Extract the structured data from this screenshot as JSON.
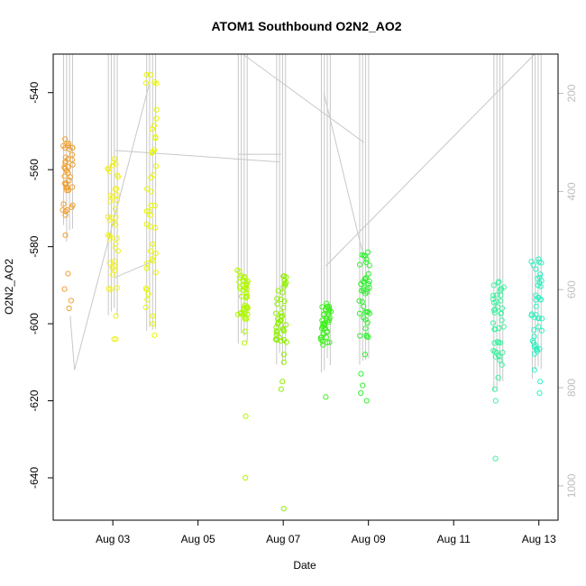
{
  "chart_data": {
    "type": "scatter",
    "title": "ATOM1 Southbound O2N2_AO2",
    "xlabel": "Date",
    "ylabel": "O2N2_AO2",
    "x_ticks": [
      "Aug 03",
      "Aug 05",
      "Aug 07",
      "Aug 09",
      "Aug 11",
      "Aug 13"
    ],
    "x_tick_days": [
      3,
      5,
      7,
      9,
      11,
      13
    ],
    "xlim_days": [
      1.6,
      13.45
    ],
    "ylim": [
      -651,
      -530
    ],
    "y_ticks": [
      -540,
      -560,
      -580,
      -600,
      -620,
      -640
    ],
    "secondary_axis": {
      "ticks": [
        200,
        400,
        600,
        800,
        1000
      ],
      "ylim": [
        1070,
        120
      ],
      "color": "#bebebe",
      "orientation": "inverted"
    },
    "grid": false,
    "marker": "open-circle",
    "clusters": [
      {
        "x": "Aug 02",
        "day": 1.95,
        "color": "#f0a030",
        "ymin": -572,
        "ymax": -552,
        "extra": [
          -577,
          -587,
          -591,
          -594,
          -596
        ]
      },
      {
        "x": "Aug 03",
        "day": 3.0,
        "color": "#f0f028",
        "ymin": -592,
        "ymax": -557,
        "extra": [
          -598,
          -604,
          -604
        ]
      },
      {
        "x": "Aug 04",
        "day": 3.9,
        "color": "#e8f800",
        "ymin": -596,
        "ymax": -535,
        "extra": [
          -598,
          -600,
          -603
        ]
      },
      {
        "x": "Aug 06",
        "day": 6.05,
        "color": "#b0f800",
        "ymin": -599,
        "ymax": -585,
        "extra": [
          -602,
          -605,
          -624,
          -640
        ]
      },
      {
        "x": "Aug 07",
        "day": 6.95,
        "color": "#90f000",
        "ymin": -605,
        "ymax": -587,
        "extra": [
          -608,
          -610,
          -615,
          -617,
          -648
        ]
      },
      {
        "x": "Aug 08",
        "day": 8.0,
        "color": "#40f020",
        "ymin": -606,
        "ymax": -594,
        "extra": [
          -619
        ]
      },
      {
        "x": "Aug 09",
        "day": 8.9,
        "color": "#30f030",
        "ymin": -604,
        "ymax": -581,
        "extra": [
          -608,
          -613,
          -616,
          -618,
          -620
        ]
      },
      {
        "x": "Aug 12",
        "day": 12.05,
        "color": "#40f0a0",
        "ymin": -611,
        "ymax": -589,
        "extra": [
          -614,
          -617,
          -620,
          -635
        ]
      },
      {
        "x": "Aug 13",
        "day": 12.95,
        "color": "#30f0c0",
        "ymin": -608,
        "ymax": -582,
        "extra": [
          -612,
          -615,
          -618
        ]
      }
    ]
  }
}
